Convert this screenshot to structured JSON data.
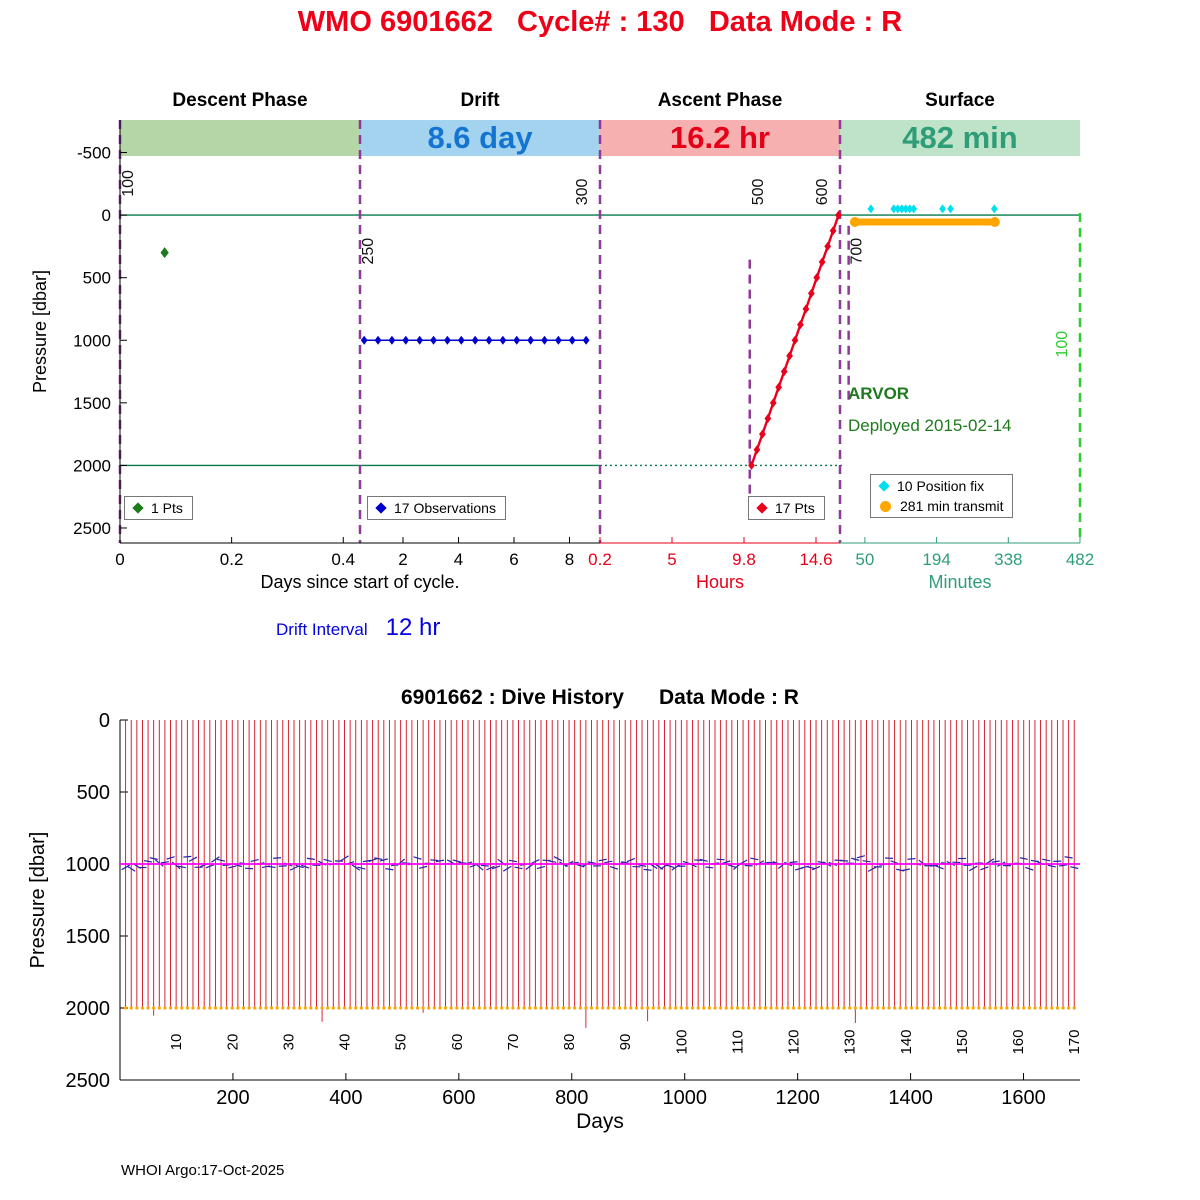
{
  "page": {
    "title": "WMO 6901662   Cycle# : 130   Data Mode : R",
    "footer": "WHOI Argo:17-Oct-2025"
  },
  "drift": {
    "label": "Drift Interval",
    "value": "12 hr"
  },
  "colors": {
    "title": "#ee0018",
    "descent_band": "#b5d6a7",
    "drift_band": "#a3d3ef",
    "ascent_band": "#f6b0b0",
    "surface_band": "#bfe3c8",
    "drift_text": "#1375cf",
    "ascent_text": "#e50019",
    "surface_text": "#2f9e78",
    "hours_axis": "#e50019",
    "minutes_axis": "#2f9e78",
    "event_line": "#8e3a96",
    "surface_event_line": "#2ecc2e",
    "ref_line": "#067a4a",
    "descent_series": "#1d7a1d",
    "drift_series": "#0000cc",
    "ascent_series": "#e8001c",
    "fix_series": "#00e0ee",
    "transmit_series": "#ffa500",
    "dive_line": "#d10f20",
    "drift_depth_line": "#ff00ff",
    "dive_mark": "#2222aa",
    "park_dot": "#ffa500",
    "annotation": "#1d7a1d"
  },
  "chart_data": [
    {
      "id": "cycle-timing",
      "type": "line",
      "ylabel": "Pressure [dbar]",
      "ylim": [
        -760,
        2620
      ],
      "yticks": [
        -500,
        0,
        500,
        1000,
        1500,
        2000,
        2500
      ],
      "phases": [
        {
          "title": "Descent Phase",
          "band_label": ""
        },
        {
          "title": "Drift",
          "band_label": "8.6 day"
        },
        {
          "title": "Ascent Phase",
          "band_label": "16.2 hr"
        },
        {
          "title": "Surface",
          "band_label": "482 min"
        }
      ],
      "x_segments": [
        {
          "unit": "days",
          "range": [
            0,
            0.43
          ],
          "ticks": [
            0,
            0.2,
            0.4
          ]
        },
        {
          "unit": "days",
          "range": [
            0.45,
            9.1
          ],
          "ticks": [
            2,
            4,
            6,
            8
          ]
        },
        {
          "unit": "hours",
          "range": [
            0.2,
            16.2
          ],
          "ticks": [
            0.2,
            5,
            9.8,
            14.6
          ]
        },
        {
          "unit": "minutes",
          "range": [
            0,
            482
          ],
          "ticks": [
            50,
            194,
            338,
            482
          ]
        }
      ],
      "axis_labels": [
        {
          "text": "Days since start of cycle."
        },
        {
          "text": "Hours"
        },
        {
          "text": "Minutes"
        }
      ],
      "event_lines": [
        {
          "label": "100",
          "xf": 0,
          "y1f": 0,
          "y2f": 1,
          "label_yf": 0.15,
          "color": "purple",
          "side": 1
        },
        {
          "label": "250",
          "xf": 0.25,
          "y1f": 0,
          "y2f": 1,
          "label_yf": 0.31,
          "color": "purple",
          "side": 1
        },
        {
          "label": "300",
          "xf": 0.5,
          "y1f": 0,
          "y2f": 1,
          "label_yf": 0.17,
          "color": "purple",
          "side": -1
        },
        {
          "label": "500",
          "xf": 0.656,
          "y1f": 0.33,
          "y2f": 0.93,
          "label_yf": 0.17,
          "color": "purple",
          "side": 1
        },
        {
          "label": "600",
          "xf": 0.75,
          "y1f": 0,
          "y2f": 1,
          "label_yf": 0.17,
          "color": "purple",
          "side": -1
        },
        {
          "label": "700",
          "xf": 0.759,
          "y1f": 0.25,
          "y2f": 0.67,
          "label_yf": 0.31,
          "color": "purple",
          "side": 1
        },
        {
          "label": "100",
          "xf": 1,
          "y1f": 0.22,
          "y2f": 1,
          "label_yf": 0.53,
          "color": "green",
          "side": -1
        }
      ],
      "series": {
        "descent": {
          "name": "1 Pts",
          "day": 0.08,
          "pressure": 300
        },
        "drift": {
          "name": "17 Observations",
          "pressure": 1000,
          "days": [
            0.6,
            1.1,
            1.6,
            2.1,
            2.6,
            3.1,
            3.6,
            4.1,
            4.6,
            5.1,
            5.6,
            6.1,
            6.6,
            7.1,
            7.6,
            8.1,
            8.6
          ]
        },
        "ascent": {
          "name": "17 Pts",
          "hours": [
            10.3,
            10.66,
            11.03,
            11.39,
            11.75,
            12.11,
            12.48,
            12.84,
            13.2,
            13.56,
            13.93,
            14.29,
            14.65,
            15.01,
            15.38,
            15.74,
            16.1
          ],
          "pressures": [
            2000,
            1875,
            1750,
            1625,
            1500,
            1375,
            1250,
            1125,
            1000,
            875,
            750,
            625,
            500,
            375,
            250,
            125,
            0
          ]
        },
        "position_fix": {
          "name": "10 Position fix",
          "pressure": -50,
          "minutes": [
            62,
            108,
            116,
            124,
            132,
            140,
            148,
            206,
            222,
            310
          ]
        },
        "transmit": {
          "name": "281 min transmit",
          "pressure": 55,
          "start_min": 30,
          "end_min": 311
        }
      },
      "legends": [
        {
          "entries": [
            {
              "label": "1 Pts",
              "marker": "diamond",
              "color": "#1d7a1d"
            }
          ]
        },
        {
          "entries": [
            {
              "label": "17 Observations",
              "marker": "diamond",
              "color": "#0000cc"
            }
          ]
        },
        {
          "entries": [
            {
              "label": "17 Pts",
              "marker": "diamond",
              "color": "#e8001c"
            }
          ]
        },
        {
          "entries": [
            {
              "label": "10 Position fix",
              "marker": "diamond",
              "color": "#00e0ee"
            },
            {
              "label": "281 min transmit",
              "marker": "circle",
              "color": "#ffa500"
            }
          ]
        }
      ],
      "annotations": [
        {
          "text": "ARVOR"
        },
        {
          "text": "Deployed 2015-02-14"
        }
      ]
    },
    {
      "id": "dive-history",
      "type": "line",
      "title": "6901662 : Dive History      Data Mode : R",
      "xlabel": "Days",
      "ylabel": "Pressure [dbar]",
      "xlim": [
        0,
        1700
      ],
      "ylim": [
        0,
        2500
      ],
      "xticks": [
        200,
        400,
        600,
        800,
        1000,
        1200,
        1400,
        1600
      ],
      "yticks": [
        0,
        500,
        1000,
        1500,
        2000,
        2500
      ],
      "cycles": {
        "count": 170,
        "interval_days": 9.94,
        "park_pressure": 1000,
        "profile_pressure": 2000
      },
      "cycle_labels": [
        10,
        20,
        30,
        40,
        50,
        60,
        70,
        80,
        90,
        100,
        110,
        120,
        130,
        140,
        150,
        160,
        170
      ]
    }
  ]
}
